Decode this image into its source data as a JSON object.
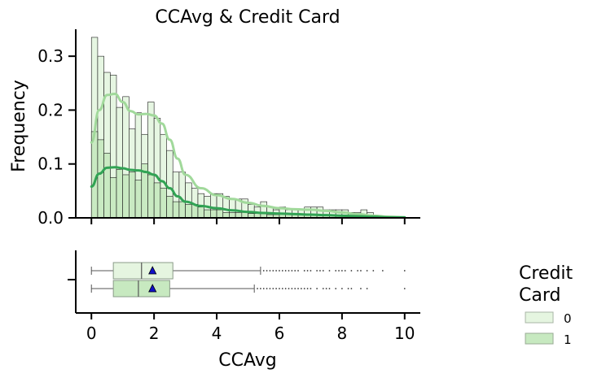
{
  "chart_data": {
    "type": "histogram+boxplot",
    "title": "CCAvg & Credit Card",
    "xlabel": "CCAvg",
    "ylabel": "Frequency",
    "xlim": [
      -0.5,
      10.5
    ],
    "ylim": [
      0,
      0.35
    ],
    "x_ticks": [
      0,
      2,
      4,
      6,
      8,
      10
    ],
    "y_ticks": [
      0.0,
      0.1,
      0.2,
      0.3
    ],
    "y_tick_labels": [
      "0.0",
      "0.1",
      "0.2",
      "0.3"
    ],
    "x_tick_labels": [
      "0",
      "2",
      "4",
      "6",
      "8",
      "10"
    ],
    "grid": false,
    "legend": {
      "title": "Credit Card",
      "title_lines": [
        "Credit",
        "Card"
      ],
      "placement": "right",
      "labels": [
        "0",
        "1"
      ]
    },
    "bin_width": 0.2,
    "bin_starts": [
      0.0,
      0.2,
      0.4,
      0.6,
      0.8,
      1.0,
      1.2,
      1.4,
      1.6,
      1.8,
      2.0,
      2.2,
      2.4,
      2.6,
      2.8,
      3.0,
      3.2,
      3.4,
      3.6,
      3.8,
      4.0,
      4.2,
      4.4,
      4.6,
      4.8,
      5.0,
      5.2,
      5.4,
      5.6,
      5.8,
      6.0,
      6.2,
      6.4,
      6.6,
      6.8,
      7.0,
      7.2,
      7.4,
      7.6,
      7.8,
      8.0,
      8.2,
      8.4,
      8.6,
      8.8
    ],
    "series": [
      {
        "name": "0",
        "color": "#e5f5e0",
        "kde_color": "#a1d99b",
        "hist": [
          0.335,
          0.3,
          0.27,
          0.265,
          0.205,
          0.225,
          0.165,
          0.195,
          0.155,
          0.215,
          0.185,
          0.155,
          0.125,
          0.085,
          0.085,
          0.065,
          0.055,
          0.045,
          0.04,
          0.045,
          0.045,
          0.04,
          0.035,
          0.035,
          0.035,
          0.025,
          0.02,
          0.03,
          0.02,
          0.015,
          0.02,
          0.015,
          0.015,
          0.015,
          0.02,
          0.02,
          0.02,
          0.015,
          0.015,
          0.015,
          0.015,
          0.01,
          0.01,
          0.015,
          0.01
        ],
        "kde_x": [
          0,
          0.25,
          0.5,
          0.75,
          1,
          1.25,
          1.5,
          1.75,
          2,
          2.25,
          2.5,
          2.75,
          3,
          3.5,
          4,
          4.5,
          5,
          5.5,
          6,
          6.5,
          7,
          7.5,
          8,
          8.5,
          9,
          9.5,
          10
        ],
        "kde_y": [
          0.14,
          0.2,
          0.228,
          0.23,
          0.215,
          0.198,
          0.192,
          0.193,
          0.19,
          0.175,
          0.145,
          0.11,
          0.08,
          0.055,
          0.042,
          0.035,
          0.028,
          0.022,
          0.018,
          0.016,
          0.015,
          0.013,
          0.01,
          0.007,
          0.004,
          0.002,
          0.001
        ]
      },
      {
        "name": "1",
        "color": "#c7e9c0",
        "kde_color": "#31a354",
        "hist": [
          0.16,
          0.145,
          0.12,
          0.075,
          0.09,
          0.08,
          0.085,
          0.07,
          0.1,
          0.08,
          0.065,
          0.055,
          0.04,
          0.03,
          0.03,
          0.025,
          0.025,
          0.02,
          0.015,
          0.015,
          0.015,
          0.01,
          0.01,
          0.01,
          0.01,
          0.008,
          0.008,
          0.008,
          0.006,
          0.006,
          0.008,
          0.008,
          0.006,
          0.006,
          0.005,
          0.005,
          0.005,
          0.004,
          0.004,
          0.004,
          0.004,
          0.003,
          0.003,
          0.003,
          0.002
        ],
        "kde_x": [
          0,
          0.25,
          0.5,
          0.75,
          1,
          1.25,
          1.5,
          1.75,
          2,
          2.25,
          2.5,
          2.75,
          3,
          3.5,
          4,
          4.5,
          5,
          5.5,
          6,
          6.5,
          7,
          7.5,
          8,
          8.5,
          9,
          9.5,
          10
        ],
        "kde_y": [
          0.058,
          0.082,
          0.093,
          0.094,
          0.092,
          0.089,
          0.088,
          0.085,
          0.08,
          0.068,
          0.055,
          0.04,
          0.03,
          0.022,
          0.018,
          0.014,
          0.011,
          0.009,
          0.008,
          0.007,
          0.006,
          0.005,
          0.004,
          0.003,
          0.002,
          0.001,
          0.001
        ]
      }
    ],
    "boxplots": [
      {
        "name": "0",
        "color": "#e5f5e0",
        "whisker_low": 0.0,
        "q1": 0.7,
        "median": 1.6,
        "q3": 2.6,
        "whisker_high": 5.4,
        "mean": 1.95,
        "outliers": [
          5.5,
          5.6,
          5.7,
          5.8,
          5.9,
          6.0,
          6.1,
          6.2,
          6.3,
          6.4,
          6.5,
          6.6,
          6.8,
          6.9,
          7.0,
          7.2,
          7.3,
          7.4,
          7.6,
          7.8,
          7.9,
          8.0,
          8.1,
          8.3,
          8.5,
          8.6,
          8.8,
          9.0,
          9.3,
          10.0
        ]
      },
      {
        "name": "1",
        "color": "#c7e9c0",
        "whisker_low": 0.0,
        "q1": 0.7,
        "median": 1.5,
        "q3": 2.5,
        "whisker_high": 5.2,
        "mean": 1.95,
        "outliers": [
          5.3,
          5.4,
          5.5,
          5.6,
          5.7,
          5.8,
          5.9,
          6.0,
          6.1,
          6.2,
          6.3,
          6.4,
          6.5,
          6.6,
          6.7,
          6.8,
          6.9,
          7.0,
          7.2,
          7.4,
          7.5,
          7.6,
          7.8,
          8.0,
          8.2,
          8.3,
          8.6,
          8.8,
          10.0
        ]
      }
    ]
  }
}
